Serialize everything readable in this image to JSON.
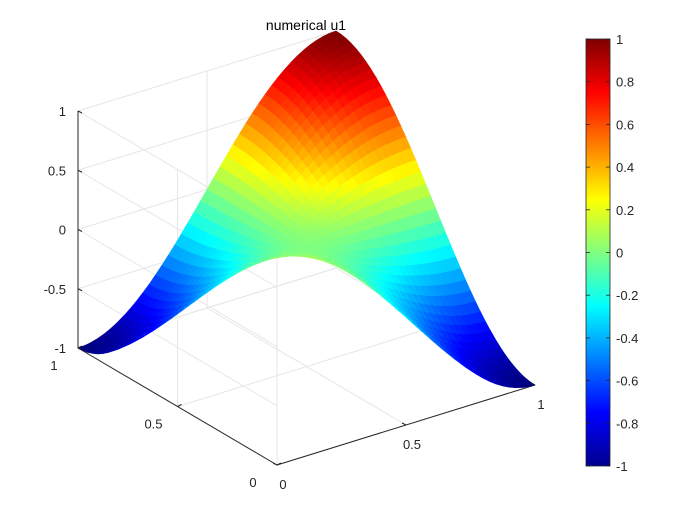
{
  "chart_data": {
    "type": "surface",
    "title": "numerical u1",
    "xlabel": "",
    "ylabel": "",
    "zlabel": "",
    "function": "u1(x, y) = cos(pi*x) * cos(pi*y)",
    "x_range": [
      0,
      1
    ],
    "y_range": [
      0,
      1
    ],
    "zlim": [
      -1,
      1
    ],
    "grid_size": 41,
    "x_ticks": [
      "0",
      "0.5",
      "1"
    ],
    "y_ticks": [
      "0",
      "0.5",
      "1"
    ],
    "z_ticks": [
      "-1",
      "-0.5",
      "0",
      "0.5",
      "1"
    ],
    "corner_values": [
      {
        "x": 0,
        "y": 0,
        "z": 1
      },
      {
        "x": 1,
        "y": 0,
        "z": -1
      },
      {
        "x": 0,
        "y": 1,
        "z": -1
      },
      {
        "x": 1,
        "y": 1,
        "z": 1
      }
    ],
    "center_value": {
      "x": 0.5,
      "y": 0.5,
      "z": 0
    },
    "colormap": "jet",
    "colorbar": {
      "limits": [
        -1,
        1
      ],
      "ticks": [
        "-1",
        "-0.8",
        "-0.6",
        "-0.4",
        "-0.2",
        "0",
        "0.2",
        "0.4",
        "0.6",
        "0.8",
        "1"
      ],
      "placement": "right"
    },
    "grid": true,
    "view": "3d-default"
  }
}
